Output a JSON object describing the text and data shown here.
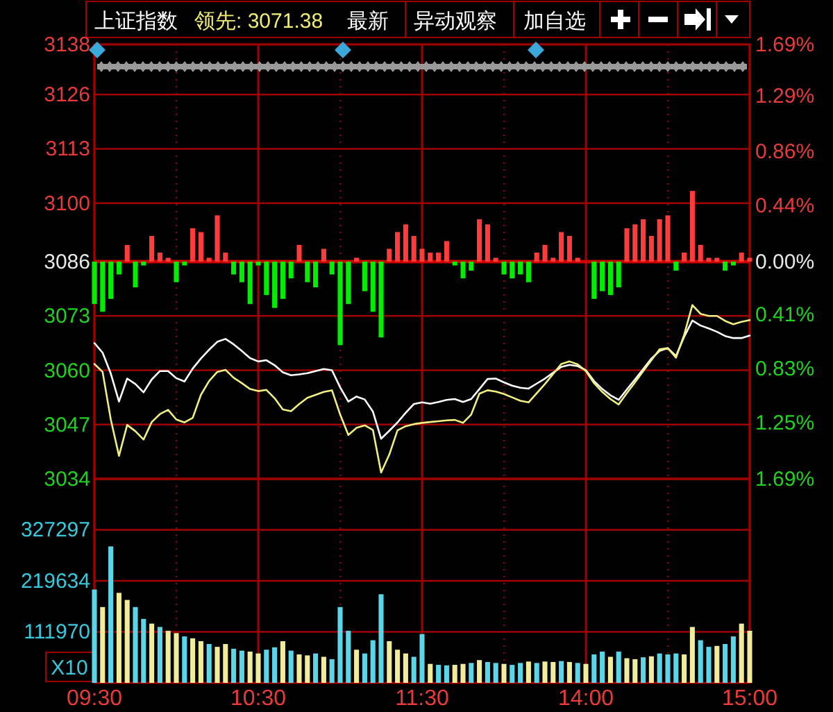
{
  "chart_data": [
    {
      "type": "line",
      "title": "上证指数",
      "annotations": [
        "领先: 3071.38",
        "最新",
        "异动观察",
        "加自选"
      ],
      "categories": [
        null,
        null,
        null,
        null,
        null,
        null,
        null,
        null,
        null,
        null,
        null,
        null,
        null,
        null,
        null,
        null,
        null,
        null,
        null,
        null,
        null,
        null,
        null,
        null,
        null,
        null,
        null,
        null,
        null,
        null,
        null,
        null,
        null,
        null,
        null,
        null,
        null,
        null,
        null,
        null,
        null,
        null,
        null,
        null,
        null,
        null,
        null,
        null,
        null,
        null,
        null,
        null,
        null,
        null,
        null,
        null,
        null,
        null,
        null,
        null,
        null,
        null,
        null,
        null,
        null,
        null,
        null,
        null,
        null,
        null,
        null,
        null,
        null,
        null,
        null,
        null,
        null,
        null,
        null,
        null,
        null
      ],
      "ylim": [
        3034,
        3138
      ],
      "yticks": [
        3034,
        3047,
        3060,
        3073,
        3086,
        3100,
        3113,
        3126,
        3138
      ],
      "y2lim": [
        -1.69,
        1.69
      ],
      "y2ticks": [
        {
          "value": 1.69,
          "label": "1.69%"
        },
        {
          "value": 1.29,
          "label": "1.29%"
        },
        {
          "value": 0.86,
          "label": "0.86%"
        },
        {
          "value": 0.44,
          "label": "0.44%"
        },
        {
          "value": 0,
          "label": "0.00%"
        },
        {
          "value": -0.41,
          "label": "0.41%"
        },
        {
          "value": -0.83,
          "label": "0.83%"
        },
        {
          "value": -1.25,
          "label": "1.25%"
        },
        {
          "value": -1.69,
          "label": "1.69%"
        }
      ],
      "tick_labels": "y",
      "grid": true,
      "ref_lines": [
        {
          "axis": "y",
          "value": 3086,
          "color": "#cc0000"
        }
      ],
      "series": [
        {
          "type": "bar",
          "axis": "y2",
          "color": "#ff3b3b",
          "values": [
            null,
            null,
            null,
            null,
            0.13,
            null,
            null,
            0.2,
            0.07,
            0.03,
            null,
            null,
            0.26,
            0.23,
            0.03,
            0.36,
            0.07,
            null,
            null,
            null,
            null,
            null,
            null,
            null,
            null,
            0.13,
            null,
            null,
            0.1,
            null,
            null,
            null,
            0.03,
            null,
            null,
            null,
            0.1,
            0.23,
            0.29,
            0.2,
            0.1,
            0.07,
            0.07,
            0.16,
            null,
            null,
            null,
            0.33,
            0.29,
            0.03,
            null,
            null,
            null,
            null,
            0.07,
            0.13,
            0.03,
            0.23,
            0.2,
            0.03,
            null,
            null,
            null,
            null,
            null,
            0.26,
            0.29,
            0.33,
            0.2,
            0.33,
            0.36,
            null,
            0.07,
            0.55,
            0.13,
            0.03,
            0.03,
            null,
            null,
            0.07,
            0.03
          ]
        },
        {
          "type": "bar",
          "axis": "y2",
          "color": "#00ee00",
          "values": [
            -0.33,
            -0.39,
            -0.29,
            -0.1,
            null,
            -0.2,
            -0.03,
            null,
            null,
            null,
            -0.16,
            -0.03,
            null,
            null,
            null,
            null,
            null,
            -0.1,
            -0.16,
            -0.33,
            -0.03,
            -0.26,
            -0.36,
            -0.29,
            -0.13,
            null,
            -0.16,
            -0.2,
            null,
            -0.1,
            -0.65,
            -0.33,
            null,
            -0.23,
            -0.39,
            -0.59,
            null,
            null,
            null,
            null,
            null,
            null,
            null,
            null,
            -0.03,
            -0.13,
            -0.07,
            null,
            null,
            null,
            -0.1,
            -0.13,
            -0.1,
            -0.16,
            null,
            null,
            null,
            null,
            null,
            null,
            null,
            -0.29,
            -0.23,
            -0.26,
            -0.2,
            null,
            null,
            null,
            null,
            null,
            null,
            -0.07,
            null,
            null,
            null,
            null,
            null,
            -0.07,
            -0.03,
            null,
            null
          ]
        },
        {
          "type": "line",
          "color": "#ffffff",
          "values": [
            3066.5,
            3064.2,
            3059.2,
            3052.5,
            3058,
            3056.7,
            3054.7,
            3057.8,
            3059.8,
            3059.8,
            3058.1,
            3057.3,
            3060.4,
            3062.8,
            3064.9,
            3066.8,
            3067.5,
            3066.2,
            3064.6,
            3062.9,
            3062.1,
            3062.4,
            3061.2,
            3059.5,
            3058.8,
            3059,
            3059.3,
            3059.8,
            3060.3,
            3060,
            3055.9,
            3052.5,
            3053.7,
            3053,
            3050.1,
            3043.6,
            3045.5,
            3047.5,
            3049.8,
            3051.9,
            3052.3,
            3052,
            3052.4,
            3052.9,
            3053.1,
            3052.4,
            3053.1,
            3055.5,
            3057.9,
            3058,
            3057.1,
            3056.3,
            3055.8,
            3055.6,
            3056.8,
            3058,
            3059.4,
            3060.8,
            3061.3,
            3061,
            3060,
            3057.4,
            3055.5,
            3054,
            3052.9,
            3055.4,
            3057.8,
            3060.3,
            3062.8,
            3064.6,
            3065.3,
            3063.4,
            3068,
            3071.9,
            3070.7,
            3070,
            3069.2,
            3068.2,
            3067.7,
            3067.7,
            3068.3
          ]
        },
        {
          "type": "line",
          "color": "#f0f080",
          "values": [
            3061.5,
            3059.6,
            3048.2,
            3039.5,
            3046.9,
            3045.4,
            3043.4,
            3047.6,
            3049.5,
            3050.5,
            3048.2,
            3047.5,
            3048.6,
            3054.1,
            3057.4,
            3059.6,
            3060.1,
            3058.2,
            3056.9,
            3055.5,
            3055,
            3055.3,
            3053.3,
            3050.6,
            3050.2,
            3051.9,
            3053.4,
            3054.1,
            3054.8,
            3055.2,
            3049.4,
            3044.5,
            3046.2,
            3046.8,
            3045.7,
            3035.5,
            3039.8,
            3045.6,
            3046.6,
            3047.1,
            3047.4,
            3047.6,
            3047.8,
            3048,
            3048.1,
            3047.4,
            3049.4,
            3054.4,
            3055.2,
            3054.9,
            3054.3,
            3053.5,
            3052.7,
            3052.3,
            3054.5,
            3056.7,
            3059.1,
            3061.5,
            3062.1,
            3061.4,
            3059.8,
            3056.9,
            3054.8,
            3053.1,
            3051.8,
            3054.5,
            3057.1,
            3059.8,
            3062.4,
            3065,
            3065.3,
            3063,
            3068.5,
            3075.6,
            3073.5,
            3073,
            3073,
            3071.8,
            3071,
            3071.6,
            3072
          ]
        }
      ]
    },
    {
      "type": "bar",
      "ylabel": "X10",
      "categories": [
        "09:30",
        null,
        null,
        null,
        null,
        null,
        null,
        null,
        null,
        null,
        null,
        null,
        null,
        null,
        null,
        null,
        null,
        null,
        null,
        null,
        "10:30",
        null,
        null,
        null,
        null,
        null,
        null,
        null,
        null,
        null,
        null,
        null,
        null,
        null,
        null,
        null,
        null,
        null,
        null,
        null,
        "11:30",
        null,
        null,
        null,
        null,
        null,
        null,
        null,
        null,
        null,
        null,
        null,
        null,
        null,
        null,
        null,
        null,
        null,
        null,
        null,
        "14:00",
        null,
        null,
        null,
        null,
        null,
        null,
        null,
        null,
        null,
        null,
        null,
        null,
        null,
        null,
        null,
        null,
        null,
        null,
        null,
        "15:00"
      ],
      "ylim": [
        4306,
        434960
      ],
      "yticks": [
        111970,
        219634,
        327297
      ],
      "grid": true,
      "values": [
        197000,
        160000,
        288000,
        190000,
        175000,
        160000,
        135000,
        125000,
        118000,
        110000,
        105000,
        98000,
        94000,
        88000,
        82000,
        76000,
        82000,
        72000,
        68000,
        66000,
        62000,
        70000,
        75000,
        88000,
        68000,
        60000,
        58000,
        62000,
        55000,
        50000,
        160000,
        110000,
        70000,
        62000,
        90000,
        187000,
        88000,
        70000,
        62000,
        55000,
        103000,
        40000,
        38000,
        37000,
        38000,
        40000,
        42000,
        48000,
        44000,
        42000,
        40000,
        38000,
        42000,
        45000,
        42000,
        45000,
        44000,
        46000,
        44000,
        42000,
        40000,
        60000,
        66000,
        55000,
        66000,
        52000,
        50000,
        54000,
        56000,
        62000,
        60000,
        62000,
        60000,
        118000,
        90000,
        76000,
        78000,
        82000,
        98000,
        125000,
        110000
      ],
      "colors": [
        "#5ad6e8",
        "#f0ec9a",
        "#5ad6e8",
        "#f0ec9a",
        "#f0ec9a",
        "#5ad6e8",
        "#5ad6e8",
        "#f0ec9a",
        "#5ad6e8",
        "#f0ec9a",
        "#f0ec9a",
        "#5ad6e8",
        "#f0ec9a",
        "#f0ec9a",
        "#5ad6e8",
        "#f0ec9a",
        "#f0ec9a",
        "#5ad6e8",
        "#5ad6e8",
        "#f0ec9a",
        "#f0ec9a",
        "#5ad6e8",
        "#5ad6e8",
        "#f0ec9a",
        "#5ad6e8",
        "#f0ec9a",
        "#f0ec9a",
        "#5ad6e8",
        "#f0ec9a",
        "#5ad6e8",
        "#5ad6e8",
        "#5ad6e8",
        "#f0ec9a",
        "#5ad6e8",
        "#5ad6e8",
        "#5ad6e8",
        "#f0ec9a",
        "#f0ec9a",
        "#f0ec9a",
        "#5ad6e8",
        "#5ad6e8",
        "#f0ec9a",
        "#5ad6e8",
        "#5ad6e8",
        "#f0ec9a",
        "#f0ec9a",
        "#5ad6e8",
        "#f0ec9a",
        "#5ad6e8",
        "#5ad6e8",
        "#f0ec9a",
        "#5ad6e8",
        "#5ad6e8",
        "#f0ec9a",
        "#5ad6e8",
        "#f0ec9a",
        "#f0ec9a",
        "#5ad6e8",
        "#f0ec9a",
        "#5ad6e8",
        "#f0ec9a",
        "#5ad6e8",
        "#5ad6e8",
        "#f0ec9a",
        "#5ad6e8",
        "#f0ec9a",
        "#f0ec9a",
        "#5ad6e8",
        "#f0ec9a",
        "#5ad6e8",
        "#5ad6e8",
        "#5ad6e8",
        "#f0ec9a",
        "#f0ec9a",
        "#5ad6e8",
        "#5ad6e8",
        "#f0ec9a",
        "#5ad6e8",
        "#5ad6e8",
        "#f0ec9a",
        "#f0ec9a"
      ]
    }
  ]
}
